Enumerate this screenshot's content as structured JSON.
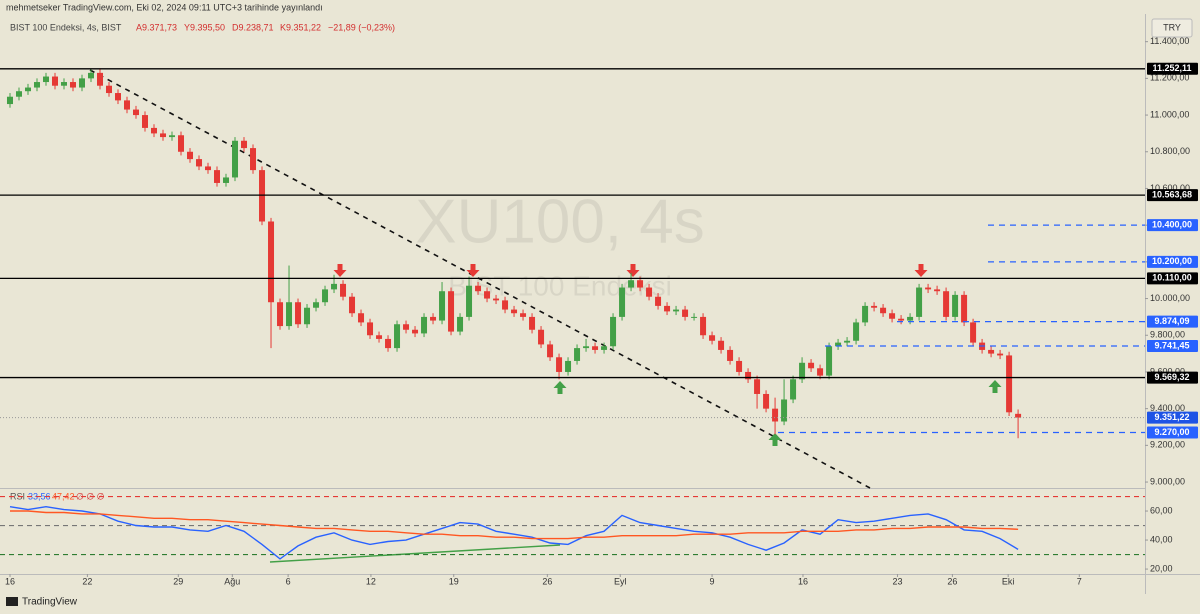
{
  "header": {
    "author": "mehmetseker TradingView.com, Eki 02, 2024 09:11 UTC+3 tarihinde yayınlandı",
    "symbol": "BIST 100 Endeksi, 4s, BIST",
    "ohlc": [
      "A9.371,73",
      "Y9.395,50",
      "D9.238,71",
      "K9.351,22",
      "−21,89 (−0,23%)"
    ],
    "currency": "TRY",
    "watermark": "XU100, 4s",
    "watermark_sub": "BIST 100 Endeksi"
  },
  "footer": {
    "brand": "TradingView"
  },
  "chart_data": [
    {
      "type": "candlestick",
      "up_color": "#43a047",
      "down_color": "#e53935",
      "x": [
        0,
        1,
        2,
        3,
        4,
        5,
        6,
        7,
        8,
        9,
        10,
        11,
        12,
        13,
        14,
        15,
        16,
        17,
        18,
        19,
        20,
        21,
        22,
        23,
        24,
        25,
        26,
        27,
        28,
        29,
        30,
        31,
        32,
        33,
        34,
        35,
        36,
        37,
        38,
        39,
        40,
        41,
        42,
        43,
        44,
        45,
        46,
        47,
        48,
        49,
        50,
        51,
        52,
        53,
        54,
        55,
        56,
        57,
        58,
        59,
        60,
        61,
        62,
        63,
        64,
        65,
        66,
        67,
        68,
        69,
        70,
        71,
        72,
        73,
        74,
        75,
        76,
        77,
        78,
        79,
        80,
        81,
        82,
        83,
        84,
        85,
        86,
        87,
        88,
        89,
        90,
        91,
        92,
        93,
        94,
        95,
        96,
        97,
        98,
        99,
        100,
        101,
        102,
        103,
        104,
        105,
        106,
        107,
        108,
        109,
        110,
        111,
        112
      ],
      "open": [
        11060,
        11100,
        11130,
        11150,
        11180,
        11210,
        11160,
        11180,
        11150,
        11200,
        11230,
        11160,
        11120,
        11080,
        11030,
        11000,
        10930,
        10900,
        10880,
        10890,
        10800,
        10760,
        10720,
        10700,
        10630,
        10660,
        10860,
        10820,
        10700,
        10420,
        9980,
        9850,
        9980,
        9860,
        9950,
        9980,
        10050,
        10080,
        10010,
        9920,
        9870,
        9800,
        9780,
        9730,
        9860,
        9830,
        9810,
        9900,
        9880,
        10040,
        9820,
        9900,
        10070,
        10040,
        10000,
        9990,
        9940,
        9920,
        9900,
        9830,
        9750,
        9680,
        9600,
        9660,
        9730,
        9740,
        9720,
        9740,
        9900,
        10060,
        10100,
        10060,
        10010,
        9960,
        9930,
        9940,
        9900,
        9900,
        9800,
        9770,
        9720,
        9660,
        9600,
        9560,
        9480,
        9400,
        9330,
        9450,
        9560,
        9650,
        9620,
        9580,
        9740,
        9760,
        9770,
        9870,
        9960,
        9950,
        9920,
        9890,
        9880,
        9900,
        10060,
        10050,
        10040,
        9900,
        10020,
        9870,
        9760,
        9720,
        9700,
        9690,
        9371.73
      ],
      "high": [
        11120,
        11150,
        11170,
        11200,
        11230,
        11230,
        11200,
        11200,
        11220,
        11250,
        11250,
        11180,
        11140,
        11100,
        11050,
        11020,
        10950,
        10920,
        10910,
        10910,
        10820,
        10780,
        10740,
        10720,
        10680,
        10880,
        10880,
        10840,
        10720,
        10440,
        10000,
        10180,
        10000,
        9970,
        10000,
        10070,
        10130,
        10100,
        10030,
        9940,
        9890,
        9820,
        9800,
        9880,
        9880,
        9850,
        9920,
        9920,
        10090,
        10060,
        9920,
        10120,
        10090,
        10060,
        10020,
        10010,
        9960,
        9940,
        9920,
        9850,
        9770,
        9700,
        9680,
        9750,
        9780,
        9760,
        9760,
        9920,
        10080,
        10140,
        10120,
        10080,
        10030,
        9980,
        9960,
        9960,
        9920,
        9920,
        9820,
        9790,
        9740,
        9680,
        9620,
        9580,
        9500,
        9460,
        9560,
        9580,
        9680,
        9670,
        9640,
        9760,
        9780,
        9790,
        9890,
        9980,
        9980,
        9970,
        9940,
        9910,
        9920,
        10080,
        10080,
        10070,
        10060,
        10040,
        10040,
        9890,
        9780,
        9740,
        9720,
        9710,
        9395.5
      ],
      "low": [
        11040,
        11080,
        11110,
        11130,
        11160,
        11140,
        11140,
        11130,
        11130,
        11180,
        11140,
        11100,
        11060,
        11010,
        10980,
        10910,
        10880,
        10860,
        10860,
        10780,
        10740,
        10700,
        10680,
        10610,
        10610,
        10640,
        10800,
        10680,
        10400,
        9730,
        9830,
        9830,
        9840,
        9840,
        9930,
        9960,
        10030,
        9990,
        9900,
        9850,
        9780,
        9760,
        9710,
        9710,
        9810,
        9790,
        9790,
        9860,
        9860,
        9800,
        9800,
        9880,
        10020,
        9980,
        9970,
        9920,
        9900,
        9880,
        9810,
        9730,
        9660,
        9560,
        9580,
        9640,
        9710,
        9700,
        9700,
        9720,
        9880,
        10040,
        10040,
        9990,
        9940,
        9910,
        9910,
        9880,
        9880,
        9780,
        9750,
        9700,
        9640,
        9580,
        9540,
        9400,
        9380,
        9260,
        9310,
        9430,
        9540,
        9600,
        9560,
        9560,
        9720,
        9740,
        9750,
        9850,
        9930,
        9900,
        9870,
        9860,
        9860,
        9880,
        10030,
        10020,
        9880,
        9880,
        9850,
        9740,
        9700,
        9680,
        9670,
        9360,
        9238.71
      ],
      "close": [
        11100,
        11130,
        11150,
        11180,
        11210,
        11160,
        11180,
        11150,
        11200,
        11230,
        11160,
        11120,
        11080,
        11030,
        11000,
        10930,
        10900,
        10880,
        10890,
        10800,
        10760,
        10720,
        10700,
        10630,
        10660,
        10860,
        10820,
        10700,
        10420,
        9980,
        9850,
        9980,
        9860,
        9950,
        9980,
        10050,
        10080,
        10010,
        9920,
        9870,
        9800,
        9780,
        9730,
        9860,
        9830,
        9810,
        9900,
        9880,
        10040,
        9820,
        9900,
        10070,
        10040,
        10000,
        9990,
        9940,
        9920,
        9900,
        9830,
        9750,
        9680,
        9600,
        9660,
        9730,
        9740,
        9720,
        9740,
        9900,
        10060,
        10100,
        10060,
        10010,
        9960,
        9930,
        9940,
        9900,
        9900,
        9800,
        9770,
        9720,
        9660,
        9600,
        9560,
        9480,
        9400,
        9330,
        9450,
        9560,
        9650,
        9620,
        9580,
        9740,
        9760,
        9770,
        9870,
        9960,
        9950,
        9920,
        9890,
        9880,
        9900,
        10060,
        10050,
        10040,
        9900,
        10020,
        9870,
        9760,
        9720,
        9700,
        9690,
        9380,
        9351.22
      ],
      "xlim": [
        -1.11,
        126.1
      ],
      "xticks": [
        {
          "value": 0,
          "label": "16"
        },
        {
          "value": 8.6,
          "label": "22"
        },
        {
          "value": 18.7,
          "label": "29"
        },
        {
          "value": 24.7,
          "label": "Ağu"
        },
        {
          "value": 30.9,
          "label": "6"
        },
        {
          "value": 40.1,
          "label": "12"
        },
        {
          "value": 49.3,
          "label": "19"
        },
        {
          "value": 59.7,
          "label": "26"
        },
        {
          "value": 67.8,
          "label": "Eyl"
        },
        {
          "value": 78,
          "label": "9"
        },
        {
          "value": 88.1,
          "label": "16"
        },
        {
          "value": 98.6,
          "label": "23"
        },
        {
          "value": 104.7,
          "label": "26"
        },
        {
          "value": 110.9,
          "label": "Eki"
        },
        {
          "value": 118.8,
          "label": "7"
        }
      ],
      "ylim": [
        8973,
        11529
      ],
      "yticks": [
        {
          "value": 9000,
          "label": "9.000,00"
        },
        {
          "value": 9200,
          "label": "9.200,00"
        },
        {
          "value": 9400,
          "label": "9.400,00"
        },
        {
          "value": 9600,
          "label": "9.600,00"
        },
        {
          "value": 9800,
          "label": "9.800,00"
        },
        {
          "value": 10000,
          "label": "10.000,00"
        },
        {
          "value": 10200,
          "label": "10.200,00"
        },
        {
          "value": 10400,
          "label": "10.400,00"
        },
        {
          "value": 10600,
          "label": "10.600,00"
        },
        {
          "value": 10800,
          "label": "10.800,00"
        },
        {
          "value": 11000,
          "label": "11.000,00"
        },
        {
          "value": 11200,
          "label": "11.200,00"
        },
        {
          "value": 11400,
          "label": "11.400,00"
        }
      ],
      "levels": [
        {
          "value": 11252.11,
          "label": "11.252,11",
          "color": "#000000",
          "style": "solid"
        },
        {
          "value": 10563.68,
          "label": "10.563,68",
          "color": "#000000",
          "style": "solid"
        },
        {
          "value": 10110,
          "label": "10.110,00",
          "color": "#000000",
          "style": "solid"
        },
        {
          "value": 9569.32,
          "label": "9.569,32",
          "color": "#000000",
          "style": "solid"
        },
        {
          "value": 10400,
          "label": "10.400,00",
          "color": "#2962ff",
          "style": "dashed"
        },
        {
          "value": 10200,
          "label": "10.200,00",
          "color": "#2962ff",
          "style": "dashed"
        },
        {
          "value": 9874.09,
          "label": "9.874,09",
          "color": "#2962ff",
          "style": "dashed"
        },
        {
          "value": 9741.45,
          "label": "9.741,45",
          "color": "#2962ff",
          "style": "dashed"
        },
        {
          "value": 9270,
          "label": "9.270,00",
          "color": "#2962ff",
          "style": "dashed"
        }
      ],
      "last": {
        "value": 9351.22,
        "label": "9.351,22",
        "color": "#1e53e5"
      }
    },
    {
      "type": "line",
      "legend": {
        "title": "RSI",
        "values": [
          "33,56",
          "47,42"
        ],
        "extra": "∅ ∅ ∅"
      },
      "x": [
        0,
        2,
        4,
        6,
        8,
        10,
        12,
        14,
        16,
        18,
        20,
        22,
        24,
        26,
        28,
        30,
        32,
        34,
        36,
        38,
        40,
        42,
        44,
        46,
        48,
        50,
        52,
        54,
        56,
        58,
        60,
        62,
        64,
        66,
        68,
        70,
        72,
        74,
        76,
        78,
        80,
        82,
        84,
        86,
        88,
        90,
        92,
        94,
        96,
        98,
        100,
        102,
        104,
        106,
        108,
        110,
        112
      ],
      "series": [
        {
          "color": "#2962ff",
          "values": [
            63,
            61,
            63,
            61,
            60,
            58,
            53,
            50,
            49,
            49,
            47,
            46,
            50,
            46,
            37,
            27,
            36,
            42,
            45,
            40,
            37,
            39,
            40,
            44,
            48,
            52,
            51,
            46,
            44,
            42,
            38,
            37,
            43,
            46,
            57,
            52,
            50,
            48,
            46,
            45,
            42,
            37,
            33,
            38,
            47,
            44,
            54,
            52,
            53,
            55,
            57,
            58,
            54,
            47,
            46,
            41,
            33.56
          ]
        },
        {
          "color": "#ff5722",
          "values": [
            60,
            60,
            59,
            59,
            58,
            58,
            57,
            56,
            55,
            55,
            54,
            54,
            53,
            52,
            51,
            50,
            49,
            48,
            48,
            47,
            46,
            46,
            45,
            44,
            44,
            43,
            43,
            42,
            42,
            41,
            41,
            41,
            42,
            42,
            43,
            43,
            43,
            43,
            44,
            44,
            44,
            45,
            45,
            45,
            46,
            46,
            46,
            47,
            47,
            48,
            48,
            49,
            49,
            49,
            48,
            48,
            47.42
          ]
        }
      ],
      "xlim": [
        -1.11,
        126.1
      ],
      "ylim": [
        16.6,
        74.5
      ],
      "yticks": [
        {
          "value": 20,
          "label": "20,00"
        },
        {
          "value": 40,
          "label": "40,00"
        },
        {
          "value": 60,
          "label": "60,00"
        }
      ],
      "bands": [
        {
          "value": 70,
          "color": "#e53935"
        },
        {
          "value": 50,
          "color": "#777777"
        },
        {
          "value": 30,
          "color": "#2e7d32"
        }
      ]
    }
  ]
}
